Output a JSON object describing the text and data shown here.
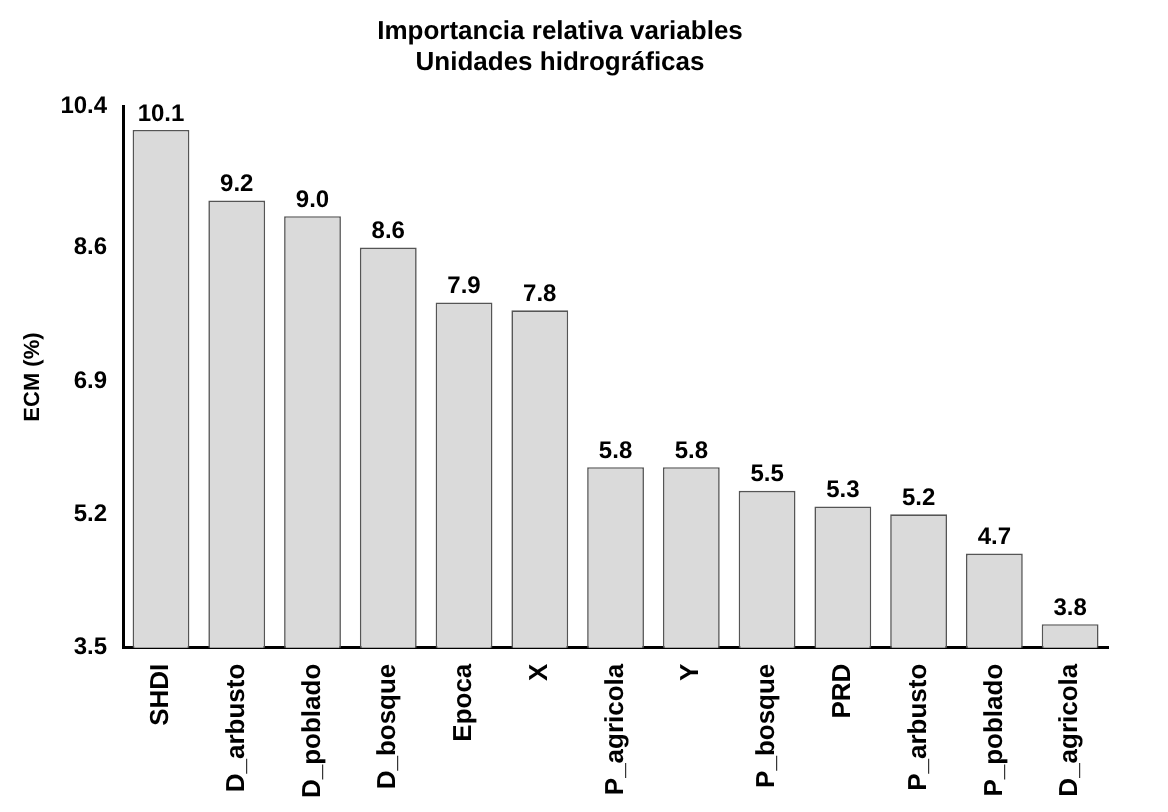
{
  "chart_data": {
    "type": "bar",
    "title": "Importancia relativa variables\nUnidades hidrográficas",
    "ylabel": "ECM (%)",
    "categories": [
      "SHDI",
      "D_arbusto",
      "D_poblado",
      "D_bosque",
      "Epoca",
      "X",
      "P_agricola",
      "Y",
      "P_bosque",
      "PRD",
      "P_arbusto",
      "P_poblado",
      "D_agricola"
    ],
    "values": [
      10.1,
      9.2,
      9.0,
      8.6,
      7.9,
      7.8,
      5.8,
      5.8,
      5.5,
      5.3,
      5.2,
      4.7,
      3.8
    ],
    "value_labels": [
      "10.1",
      "9.2",
      "9.0",
      "8.6",
      "7.9",
      "7.8",
      "5.8",
      "5.8",
      "5.5",
      "5.3",
      "5.2",
      "4.7",
      "3.8"
    ],
    "color": "#dadada",
    "ylim": [
      3.5,
      10.4
    ],
    "yticks": [
      3.5,
      5.2,
      6.9,
      8.6,
      10.4
    ],
    "grid": false,
    "legend": false
  }
}
